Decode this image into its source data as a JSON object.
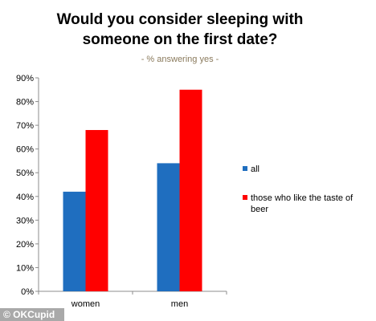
{
  "chart_data": {
    "type": "bar",
    "title": "Would you consider sleeping with someone on the first date?",
    "title_lines": [
      "Would you consider sleeping with",
      "someone on the first date?"
    ],
    "subtitle": "- % answering yes -",
    "categories": [
      "women",
      "men"
    ],
    "series": [
      {
        "name": "all",
        "color": "#1f6ebf",
        "values": [
          42,
          54
        ]
      },
      {
        "name": "those who like the taste of beer",
        "color": "#ff0000",
        "values": [
          68,
          85
        ]
      }
    ],
    "legend_lines": [
      [
        "all"
      ],
      [
        "those who like the taste of",
        "beer"
      ]
    ],
    "ylim": [
      0,
      90
    ],
    "yticks": [
      0,
      10,
      20,
      30,
      40,
      50,
      60,
      70,
      80,
      90
    ],
    "ytick_labels": [
      "0%",
      "10%",
      "20%",
      "30%",
      "40%",
      "50%",
      "60%",
      "70%",
      "80%",
      "90%"
    ],
    "xlabel": "",
    "ylabel": "",
    "grid": false,
    "legend_position": "right"
  },
  "watermark": "© OKCupid"
}
